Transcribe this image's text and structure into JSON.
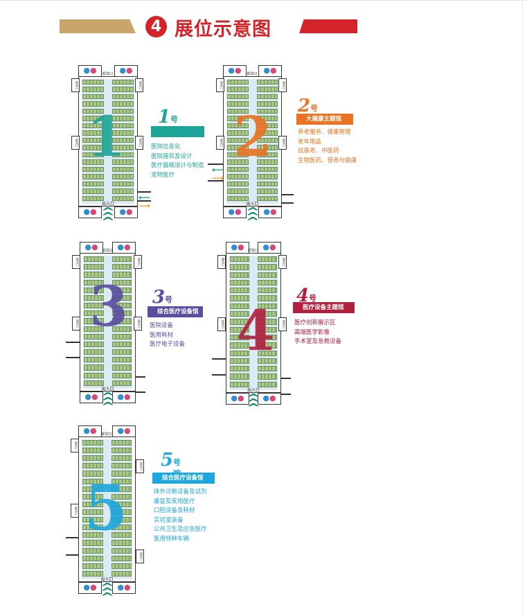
{
  "header": {
    "number": "4",
    "title": "展位示意图",
    "colors": {
      "gold": "#c9a46b",
      "red": "#d3242a"
    }
  },
  "labels": {
    "entrance": "出入口",
    "unload": "卸货口",
    "toilet_icon": "restroom-icon"
  },
  "halls": [
    {
      "number": "1",
      "suffix": "号馆",
      "theme": "",
      "color": "#1fa597",
      "categories": [
        "医院信息化",
        "医院建筑及设计",
        "医疗器械设计与制造",
        "宠物医疗"
      ]
    },
    {
      "number": "2",
      "suffix": "号馆",
      "theme": "大健康主题馆",
      "color": "#ea7222",
      "categories": [
        "养老服务、健康管理",
        "老年用品",
        "抗衰老、中医药",
        "生物医药、营养与健康"
      ]
    },
    {
      "number": "3",
      "suffix": "号馆",
      "theme": "综合医疗设备馆",
      "color": "#5a4da0",
      "categories": [
        "医院设备",
        "医用耗材",
        "医疗电子设备"
      ]
    },
    {
      "number": "4",
      "suffix": "号馆",
      "theme": "医疗设备主题馆",
      "color": "#b0203f",
      "categories": [
        "医疗创新展示区",
        "高端医学影像",
        "手术室及急救设备"
      ]
    },
    {
      "number": "5",
      "suffix": "号馆",
      "theme": "综合医疗设备馆",
      "color": "#1ea6df",
      "categories": [
        "体外诊断设备及试剂",
        "康复及家用医疗",
        "口腔设备及耗材",
        "实验室装备",
        "公共卫生及应急医疗",
        "医用特种车辆"
      ]
    }
  ]
}
